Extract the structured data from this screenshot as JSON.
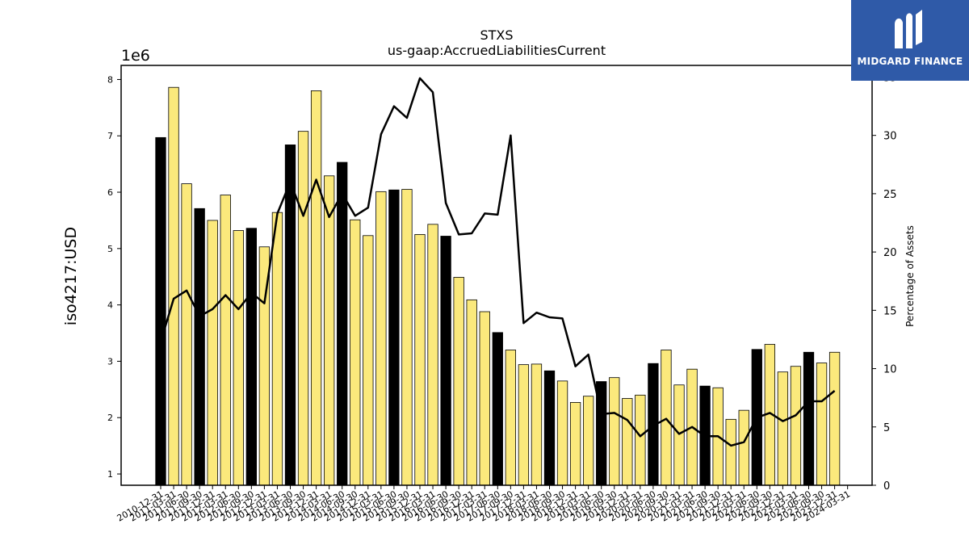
{
  "chart_data": {
    "type": "bar",
    "title": "STXS",
    "subtitle": "us-gaap:AccruedLiabilitiesCurrent",
    "ylabel": "iso4217:USD",
    "y_multiplier_label": "1e6",
    "y2label": "Percentage of Assets",
    "ylim": [
      0.8,
      8.25
    ],
    "y2lim": [
      0,
      36
    ],
    "yticks": [
      1,
      2,
      3,
      4,
      5,
      6,
      7,
      8
    ],
    "y2ticks": [
      0,
      5,
      10,
      15,
      20,
      25,
      30,
      35
    ],
    "bar_colors": {
      "annual": "#000000",
      "quarterly": "#fbe97c"
    },
    "line_color": "#000000",
    "categories": [
      "2010-12-31",
      "2011-03-31",
      "2011-06-30",
      "2011-09-30",
      "2011-12-31",
      "2012-03-31",
      "2012-06-30",
      "2012-09-30",
      "2012-12-31",
      "2013-03-31",
      "2013-06-30",
      "2013-09-30",
      "2013-12-31",
      "2014-03-31",
      "2014-06-30",
      "2014-09-30",
      "2014-12-31",
      "2015-03-31",
      "2015-06-30",
      "2015-09-30",
      "2015-12-31",
      "2016-03-31",
      "2016-06-30",
      "2016-09-30",
      "2016-12-31",
      "2017-03-31",
      "2017-06-30",
      "2017-09-30",
      "2017-12-31",
      "2018-03-31",
      "2018-06-30",
      "2018-09-30",
      "2018-12-31",
      "2019-03-31",
      "2019-06-30",
      "2019-09-30",
      "2019-12-31",
      "2020-03-31",
      "2020-06-30",
      "2020-09-30",
      "2020-12-31",
      "2021-03-31",
      "2021-06-30",
      "2021-09-30",
      "2021-12-31",
      "2022-03-31",
      "2022-06-30",
      "2022-09-30",
      "2022-12-31",
      "2023-03-31",
      "2023-06-30",
      "2023-09-30",
      "2023-12-31",
      "2024-03-31"
    ],
    "annual_flags": [
      1,
      0,
      0,
      1,
      0,
      0,
      0,
      1,
      0,
      0,
      1,
      0,
      0,
      0,
      1,
      0,
      0,
      0,
      1,
      0,
      0,
      0,
      1,
      0,
      0,
      0,
      1,
      0,
      0,
      0,
      1,
      0,
      0,
      0,
      1,
      0,
      0,
      0,
      1,
      0,
      0,
      0,
      1,
      0,
      0,
      0,
      1,
      0,
      0,
      0,
      1,
      0,
      0,
      0
    ],
    "series": [
      {
        "name": "iso4217:USD",
        "values": [
          6.97,
          7.86,
          6.15,
          5.71,
          5.5,
          5.95,
          5.32,
          5.36,
          5.03,
          5.64,
          6.84,
          7.08,
          7.8,
          6.29,
          6.53,
          5.51,
          5.23,
          6.01,
          6.04,
          6.05,
          5.25,
          5.43,
          5.22,
          4.49,
          4.09,
          3.88,
          3.51,
          3.2,
          2.94,
          2.95,
          2.83,
          2.65,
          2.27,
          2.38,
          2.64,
          2.71,
          2.34,
          2.4,
          2.96,
          3.2,
          2.58,
          2.86,
          2.56,
          2.53,
          1.97,
          2.13,
          3.21,
          3.3,
          2.81,
          2.91,
          3.16,
          2.97,
          3.16,
          null
        ]
      },
      {
        "name": "Percentage of Assets",
        "axis": "right",
        "values": [
          12.3,
          16.0,
          16.7,
          14.5,
          15.1,
          16.3,
          15.1,
          16.5,
          15.6,
          23.3,
          26.0,
          23.1,
          26.2,
          23.0,
          25.0,
          23.1,
          23.8,
          30.1,
          32.5,
          31.5,
          34.9,
          33.7,
          24.2,
          21.5,
          21.6,
          23.3,
          23.2,
          30.0,
          13.9,
          14.8,
          14.4,
          14.3,
          10.2,
          11.2,
          6.1,
          6.2,
          5.6,
          4.2,
          5.1,
          5.7,
          4.4,
          5.0,
          4.2,
          4.2,
          3.4,
          3.7,
          5.8,
          6.2,
          5.5,
          6.0,
          7.2,
          7.2,
          8.1,
          null
        ]
      }
    ]
  },
  "logo": {
    "text": "MIDGARD FINANCE"
  }
}
